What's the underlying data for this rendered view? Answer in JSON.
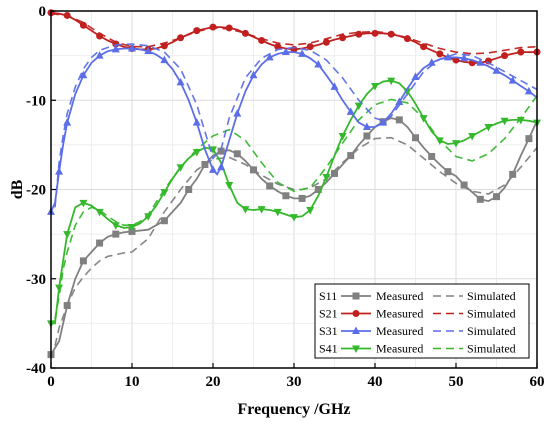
{
  "chart_data": {
    "type": "line",
    "title": "",
    "xlabel": "Frequency /GHz",
    "ylabel": "dB",
    "xlim": [
      0,
      60
    ],
    "ylim": [
      -40,
      0
    ],
    "xticks": [
      0,
      10,
      20,
      30,
      40,
      50,
      60
    ],
    "yticks": [
      0,
      -10,
      -20,
      -30,
      -40
    ],
    "grid": true,
    "legend": {
      "placement": "bottom-right",
      "measured_label": "Measured",
      "simulated_label": "Simulated"
    },
    "series": [
      {
        "name": "S11",
        "color": "#808080",
        "marker": "square",
        "measured": {
          "x": [
            0,
            1,
            2,
            3,
            4,
            5,
            6,
            7,
            8,
            9,
            10,
            12,
            14,
            16,
            17,
            18,
            19,
            20,
            21,
            22,
            23,
            24,
            25,
            26,
            27,
            28,
            29,
            30,
            31,
            32,
            33,
            34,
            35,
            36,
            37,
            38,
            39,
            40,
            41,
            42,
            43,
            44,
            45,
            46,
            47,
            48,
            49,
            50,
            51,
            52,
            53,
            54,
            55,
            56,
            57,
            58,
            59,
            60
          ],
          "y": [
            -38.5,
            -37,
            -33,
            -30,
            -28,
            -27,
            -26,
            -25.3,
            -25,
            -24.8,
            -24.7,
            -24.5,
            -23.5,
            -21.5,
            -20,
            -18.8,
            -17.2,
            -16.2,
            -15.7,
            -15.6,
            -16,
            -16.8,
            -17.8,
            -18.8,
            -19.6,
            -20.2,
            -20.7,
            -21,
            -21,
            -20.7,
            -20,
            -19.2,
            -18.2,
            -17.2,
            -16.2,
            -15,
            -14,
            -13,
            -12.4,
            -12,
            -12.2,
            -13,
            -14.2,
            -15.3,
            -16.3,
            -17.2,
            -18,
            -18.5,
            -19.5,
            -20.3,
            -21.1,
            -21.3,
            -20.8,
            -19.8,
            -18.3,
            -16.2,
            -14.3,
            -12.3
          ],
          "labeled_points": []
        },
        "simulated": {
          "x": [
            0.5,
            1,
            2,
            3,
            4,
            5,
            6,
            7,
            8,
            9,
            10,
            12,
            14,
            16,
            18,
            20,
            22,
            24,
            26,
            28,
            30,
            31,
            32,
            34,
            36,
            38,
            40,
            42,
            44,
            46,
            48,
            50,
            52,
            54,
            56,
            58,
            60
          ],
          "y": [
            -37.5,
            -35.5,
            -33,
            -31,
            -29.8,
            -28.8,
            -28,
            -27.5,
            -27.3,
            -27.1,
            -27,
            -25.5,
            -22.5,
            -20,
            -17.8,
            -16.6,
            -16.4,
            -17.2,
            -18.4,
            -19.4,
            -20,
            -20,
            -19.8,
            -18.8,
            -17,
            -15.4,
            -14.3,
            -14.2,
            -15,
            -16.5,
            -18,
            -19.3,
            -20.2,
            -20.5,
            -19.5,
            -17.5,
            -15.3
          ]
        }
      },
      {
        "name": "S21",
        "color": "#c0201e",
        "marker": "circle",
        "measured": {
          "x": [
            0,
            1,
            2,
            3,
            4,
            5,
            6,
            7,
            8,
            9,
            10,
            11,
            12,
            13,
            14,
            15,
            16,
            17,
            18,
            19,
            20,
            21,
            22,
            23,
            24,
            25,
            26,
            27,
            28,
            29,
            30,
            31,
            32,
            33,
            34,
            35,
            36,
            37,
            38,
            39,
            40,
            41,
            42,
            43,
            44,
            45,
            46,
            47,
            48,
            49,
            50,
            51,
            52,
            53,
            54,
            55,
            56,
            57,
            58,
            59,
            60
          ],
          "y": [
            -0.2,
            -0.3,
            -0.5,
            -1,
            -1.6,
            -2.2,
            -2.8,
            -3.3,
            -3.7,
            -4,
            -4.2,
            -4.3,
            -4.3,
            -4.2,
            -3.9,
            -3.5,
            -3,
            -2.6,
            -2.2,
            -2,
            -1.8,
            -1.8,
            -1.9,
            -2.1,
            -2.5,
            -2.9,
            -3.3,
            -3.7,
            -4,
            -4.2,
            -4.3,
            -4.2,
            -4,
            -3.8,
            -3.5,
            -3.2,
            -3,
            -2.8,
            -2.6,
            -2.5,
            -2.5,
            -2.5,
            -2.6,
            -2.8,
            -3.1,
            -3.5,
            -4,
            -4.4,
            -4.8,
            -5.2,
            -5.5,
            -5.7,
            -5.8,
            -5.8,
            -5.6,
            -5.3,
            -5,
            -4.8,
            -4.6,
            -4.6,
            -4.6
          ],
          "labeled_points": []
        },
        "simulated": {
          "x": [
            0,
            2,
            4,
            6,
            8,
            10,
            12,
            14,
            16,
            18,
            20,
            22,
            24,
            26,
            28,
            30,
            32,
            34,
            36,
            38,
            40,
            42,
            44,
            46,
            48,
            50,
            52,
            54,
            56,
            58,
            60
          ],
          "y": [
            -0.3,
            -0.5,
            -1.3,
            -2.5,
            -3.5,
            -4,
            -4,
            -3.6,
            -3,
            -2.3,
            -1.9,
            -2,
            -2.5,
            -3.1,
            -3.6,
            -3.8,
            -3.6,
            -3.1,
            -2.6,
            -2.4,
            -2.3,
            -2.5,
            -3,
            -3.6,
            -4.2,
            -4.6,
            -4.8,
            -4.7,
            -4.4,
            -4.1,
            -4
          ]
        }
      },
      {
        "name": "S31",
        "color": "#5b6ee8",
        "marker": "triangle-up",
        "measured": {
          "x": [
            0,
            0.5,
            1,
            1.5,
            2,
            3,
            4,
            5,
            6,
            7,
            8,
            9,
            10,
            11,
            12,
            13,
            14,
            15,
            16,
            17,
            18,
            19,
            20,
            20.5,
            21,
            22,
            23,
            24,
            25,
            26,
            27,
            28,
            29,
            30,
            31,
            32,
            33,
            34,
            35,
            36,
            37,
            38,
            39,
            40,
            41,
            42,
            43,
            44,
            45,
            46,
            47,
            48,
            49,
            50,
            51,
            52,
            53,
            54,
            55,
            56,
            57,
            58,
            59,
            60
          ],
          "y": [
            -22.5,
            -21.5,
            -18,
            -15,
            -12.5,
            -9.3,
            -7.2,
            -5.8,
            -5,
            -4.5,
            -4.3,
            -4.2,
            -4.2,
            -4.3,
            -4.5,
            -4.9,
            -5.5,
            -6.5,
            -8,
            -10,
            -12.5,
            -15.5,
            -17.8,
            -18.3,
            -17.5,
            -14.5,
            -11.5,
            -9,
            -7.2,
            -6,
            -5.2,
            -4.8,
            -4.6,
            -4.6,
            -4.8,
            -5.3,
            -6,
            -7.2,
            -8.5,
            -10,
            -11.3,
            -12.5,
            -13,
            -13,
            -12.5,
            -11.5,
            -10.2,
            -8.7,
            -7.4,
            -6.4,
            -5.8,
            -5.4,
            -5.2,
            -5.2,
            -5.3,
            -5.5,
            -5.8,
            -6.2,
            -6.7,
            -7.2,
            -7.8,
            -8.4,
            -9,
            -9.7
          ],
          "labeled_points": []
        },
        "simulated": {
          "x": [
            0.5,
            1,
            1.5,
            2,
            3,
            4,
            5,
            6,
            8,
            10,
            12,
            14,
            16,
            18,
            19,
            20,
            21,
            22,
            24,
            26,
            28,
            30,
            32,
            34,
            36,
            38,
            40,
            41,
            42,
            44,
            46,
            48,
            50,
            52,
            54,
            56,
            58,
            60
          ],
          "y": [
            -22,
            -17,
            -14,
            -11.5,
            -8.5,
            -6.5,
            -5.2,
            -4.4,
            -3.8,
            -3.7,
            -3.9,
            -4.6,
            -6.5,
            -10.5,
            -13.5,
            -16.5,
            -15.5,
            -12,
            -7.5,
            -5.3,
            -4.3,
            -4.1,
            -4.4,
            -5.5,
            -7.5,
            -10,
            -12,
            -12.3,
            -11.8,
            -9.3,
            -6.8,
            -5.4,
            -4.8,
            -5,
            -5.8,
            -6.8,
            -7.8,
            -8.8
          ]
        }
      },
      {
        "name": "S41",
        "color": "#35b82c",
        "marker": "triangle-down",
        "measured": {
          "x": [
            0,
            0.5,
            1,
            1.5,
            2,
            3,
            4,
            5,
            6,
            7,
            8,
            9,
            10,
            11,
            12,
            13,
            14,
            15,
            16,
            17,
            18,
            19,
            20,
            21,
            22,
            23,
            24,
            25,
            26,
            27,
            28,
            29,
            30,
            31,
            32,
            33,
            34,
            35,
            36,
            37,
            38,
            39,
            40,
            41,
            42,
            43,
            44,
            45,
            46,
            47,
            48,
            49,
            50,
            51,
            52,
            53,
            54,
            55,
            56,
            57,
            58,
            59,
            60
          ],
          "y": [
            -35,
            -35,
            -31,
            -28,
            -25,
            -22,
            -21.5,
            -21.8,
            -22.5,
            -23.3,
            -24,
            -24.3,
            -24.2,
            -23.8,
            -23,
            -21.8,
            -20.3,
            -18.8,
            -17.5,
            -16.5,
            -15.8,
            -15.3,
            -15.5,
            -17,
            -19.5,
            -21.5,
            -22.2,
            -22.3,
            -22.2,
            -22.3,
            -22.5,
            -22.8,
            -23.1,
            -23,
            -22.3,
            -20.7,
            -18.6,
            -16.2,
            -14,
            -12.2,
            -10.6,
            -9.3,
            -8.4,
            -7.9,
            -7.8,
            -8.1,
            -9,
            -10.4,
            -12,
            -13.5,
            -14.5,
            -14.9,
            -14.8,
            -14.5,
            -14,
            -13.5,
            -13,
            -12.6,
            -12.3,
            -12.2,
            -12.2,
            -12.3,
            -12.5
          ],
          "labeled_points": []
        },
        "simulated": {
          "x": [
            0.5,
            1,
            1.5,
            2,
            3,
            4,
            5,
            6,
            7,
            8,
            9,
            10,
            11,
            12,
            14,
            16,
            18,
            20,
            22,
            24,
            26,
            28,
            30,
            32,
            34,
            36,
            38,
            40,
            42,
            44,
            46,
            48,
            50,
            52,
            54,
            56,
            58,
            60
          ],
          "y": [
            -34.5,
            -32,
            -29,
            -27,
            -24,
            -22.5,
            -22,
            -22.3,
            -23,
            -23.6,
            -24,
            -24,
            -23.6,
            -22.8,
            -20,
            -17.5,
            -15.5,
            -14,
            -13.3,
            -14.5,
            -17,
            -19.2,
            -20.2,
            -19.8,
            -17.5,
            -14.8,
            -12.2,
            -10.5,
            -9.9,
            -10.3,
            -12,
            -14.5,
            -16.3,
            -16.8,
            -16,
            -14.3,
            -12,
            -9.5
          ]
        }
      }
    ]
  }
}
